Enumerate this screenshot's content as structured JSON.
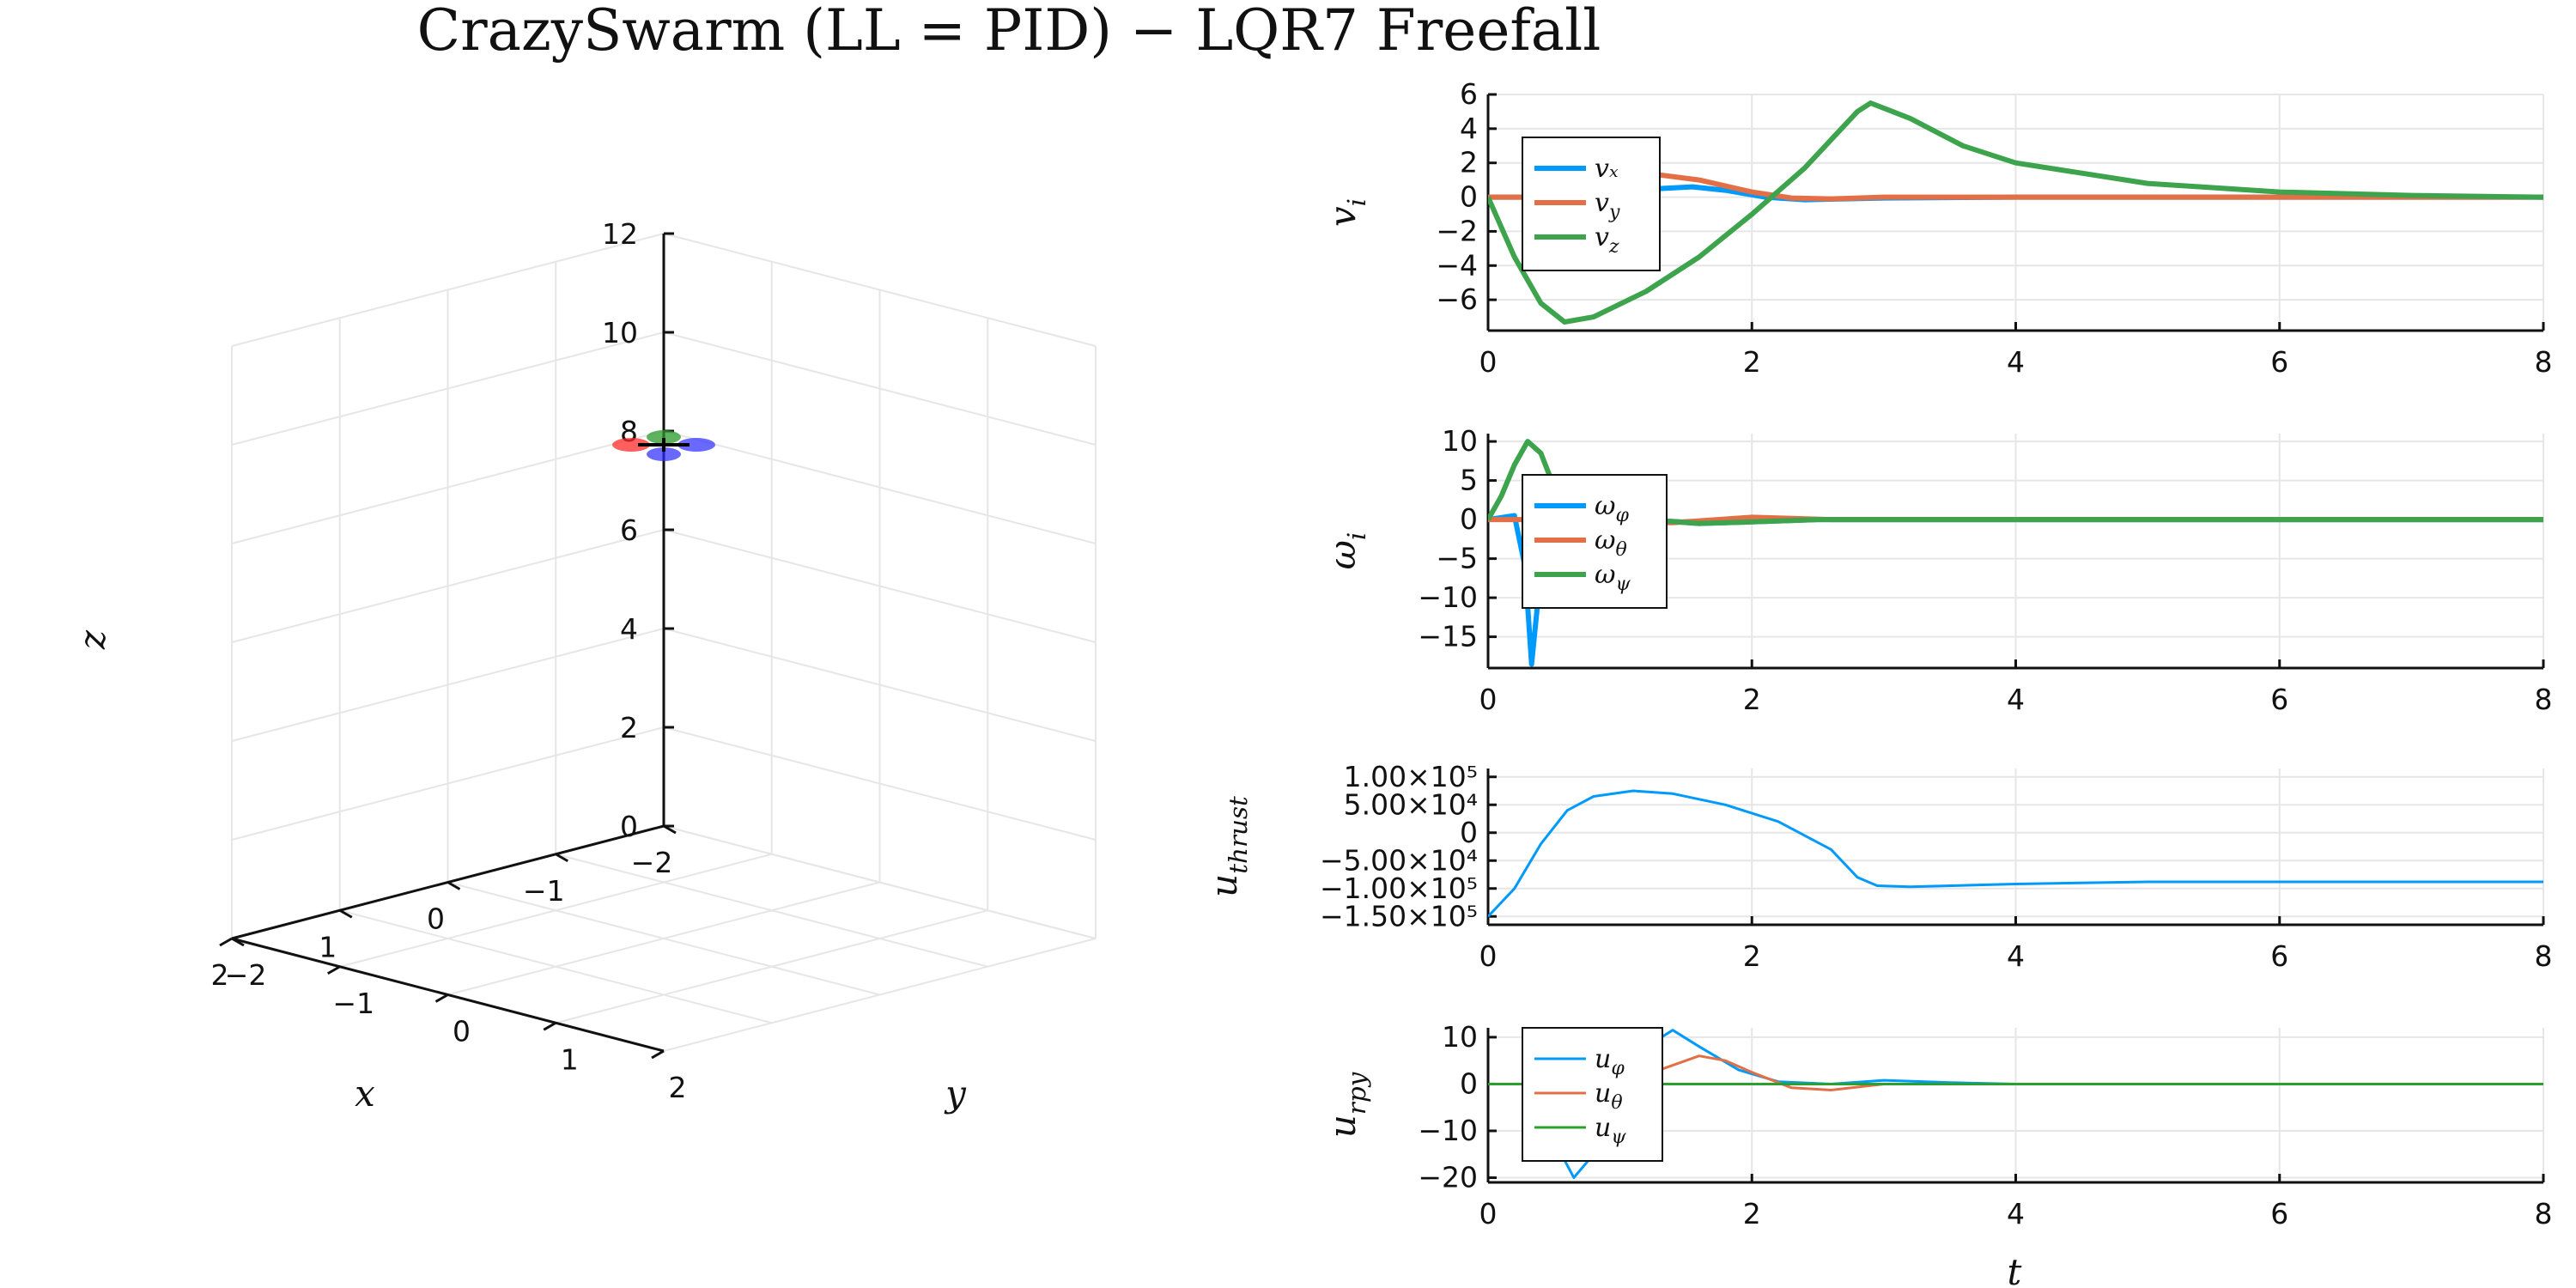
{
  "title": "CrazySwarm (LL = PID) − LQR7 Freefall",
  "colors": {
    "blue": "#009AFA",
    "orange": "#E26F46",
    "green": "#3DA44D",
    "red_prop": "#ff2a2a",
    "blue_prop": "#2a2aff",
    "green_prop": "#2a9a2a"
  },
  "chart_data": [
    {
      "id": "3d",
      "type": "scatter",
      "title": "",
      "xlabel": "x",
      "ylabel": "y",
      "zlabel": "z",
      "x_ticks": [
        "−2",
        "−1",
        "0",
        "1",
        "2"
      ],
      "y_ticks": [
        "−2",
        "−1",
        "0",
        "1",
        "2"
      ],
      "z_ticks": [
        "0",
        "2",
        "4",
        "6",
        "8",
        "10",
        "12"
      ],
      "xlim": [
        -2,
        2
      ],
      "ylim": [
        -2,
        2
      ],
      "zlim": [
        0,
        12
      ],
      "grid": true,
      "points": [
        {
          "label": "quadrotor",
          "x": 0,
          "y": 0,
          "z": 10
        }
      ]
    },
    {
      "id": "v",
      "type": "line",
      "ylabel": "v_i",
      "xlim": [
        0,
        8
      ],
      "ylim": [
        -7.8,
        6
      ],
      "x_ticks": [
        "0",
        "2",
        "4",
        "6",
        "8"
      ],
      "y_ticks": [
        "6",
        "4",
        "2",
        "0",
        "−2",
        "−4",
        "−6"
      ],
      "grid": true,
      "legend": "top-left",
      "series": [
        {
          "name": "vₓ",
          "color": "#009AFA",
          "points": [
            [
              0,
              0
            ],
            [
              0.5,
              0
            ],
            [
              1.0,
              0.2
            ],
            [
              1.3,
              0.5
            ],
            [
              1.55,
              0.6
            ],
            [
              1.8,
              0.4
            ],
            [
              2.1,
              0
            ],
            [
              2.4,
              -0.15
            ],
            [
              3,
              -0.05
            ],
            [
              4,
              0
            ],
            [
              8,
              0
            ]
          ]
        },
        {
          "name": "v_y",
          "color": "#E26F46",
          "points": [
            [
              0,
              0
            ],
            [
              0.6,
              0
            ],
            [
              1.0,
              0.7
            ],
            [
              1.3,
              1.3
            ],
            [
              1.6,
              1.0
            ],
            [
              2.0,
              0.3
            ],
            [
              2.3,
              -0.05
            ],
            [
              2.6,
              -0.1
            ],
            [
              3,
              0
            ],
            [
              8,
              0
            ]
          ]
        },
        {
          "name": "v_z",
          "color": "#3DA44D",
          "points": [
            [
              0,
              0
            ],
            [
              0.2,
              -3.5
            ],
            [
              0.4,
              -6.2
            ],
            [
              0.58,
              -7.3
            ],
            [
              0.8,
              -7.0
            ],
            [
              1.2,
              -5.5
            ],
            [
              1.6,
              -3.5
            ],
            [
              2.0,
              -1.0
            ],
            [
              2.4,
              1.7
            ],
            [
              2.8,
              5.0
            ],
            [
              2.9,
              5.5
            ],
            [
              3.2,
              4.6
            ],
            [
              3.6,
              3.0
            ],
            [
              4.0,
              2.0
            ],
            [
              5.0,
              0.8
            ],
            [
              6.0,
              0.3
            ],
            [
              7.0,
              0.1
            ],
            [
              8.0,
              0
            ]
          ]
        }
      ]
    },
    {
      "id": "w",
      "type": "line",
      "ylabel": "ω_i",
      "xlim": [
        0,
        8
      ],
      "ylim": [
        -19,
        11
      ],
      "x_ticks": [
        "0",
        "2",
        "4",
        "6",
        "8"
      ],
      "y_ticks": [
        "10",
        "5",
        "0",
        "−5",
        "−10",
        "−15"
      ],
      "grid": true,
      "legend": "top-left",
      "series": [
        {
          "name": "ω_φ",
          "color": "#009AFA",
          "points": [
            [
              0,
              0
            ],
            [
              0.2,
              0.5
            ],
            [
              0.28,
              -6
            ],
            [
              0.33,
              -18.5
            ],
            [
              0.38,
              -10
            ],
            [
              0.42,
              -1
            ],
            [
              0.5,
              2
            ],
            [
              0.8,
              1.5
            ],
            [
              1.2,
              0
            ],
            [
              1.6,
              -0.5
            ],
            [
              2.0,
              -0.3
            ],
            [
              2.5,
              0
            ],
            [
              8,
              0
            ]
          ]
        },
        {
          "name": "ω_θ",
          "color": "#E26F46",
          "points": [
            [
              0,
              0
            ],
            [
              0.3,
              0
            ],
            [
              0.6,
              -0.2
            ],
            [
              1.0,
              -0.3
            ],
            [
              1.4,
              -0.4
            ],
            [
              2.0,
              0.3
            ],
            [
              2.2,
              0.2
            ],
            [
              2.6,
              0
            ],
            [
              8,
              0
            ]
          ]
        },
        {
          "name": "ω_ψ",
          "color": "#3DA44D",
          "points": [
            [
              0,
              0
            ],
            [
              0.1,
              3
            ],
            [
              0.2,
              7
            ],
            [
              0.3,
              10
            ],
            [
              0.4,
              8.5
            ],
            [
              0.55,
              2
            ],
            [
              0.8,
              0.5
            ],
            [
              1.2,
              0
            ],
            [
              1.6,
              -0.5
            ],
            [
              2.0,
              -0.3
            ],
            [
              2.5,
              0
            ],
            [
              8,
              0
            ]
          ]
        }
      ]
    },
    {
      "id": "uthrust",
      "type": "line",
      "ylabel": "u_thrust",
      "xlim": [
        0,
        8
      ],
      "ylim": [
        -165000,
        115000
      ],
      "x_ticks": [
        "0",
        "2",
        "4",
        "6",
        "8"
      ],
      "y_ticks": [
        "1.00×10⁵",
        "5.00×10⁴",
        "0",
        "−5.00×10⁴",
        "−1.00×10⁵",
        "−1.50×10⁵"
      ],
      "grid": true,
      "legend": "none",
      "series": [
        {
          "name": "",
          "color": "#009AFA",
          "points": [
            [
              0,
              -150000
            ],
            [
              0.2,
              -100000
            ],
            [
              0.4,
              -20000
            ],
            [
              0.6,
              40000
            ],
            [
              0.8,
              65000
            ],
            [
              1.1,
              75000
            ],
            [
              1.4,
              70000
            ],
            [
              1.8,
              50000
            ],
            [
              2.2,
              20000
            ],
            [
              2.6,
              -30000
            ],
            [
              2.8,
              -80000
            ],
            [
              2.95,
              -95000
            ],
            [
              3.2,
              -97000
            ],
            [
              4,
              -92000
            ],
            [
              5,
              -88000
            ],
            [
              8,
              -88000
            ]
          ]
        }
      ]
    },
    {
      "id": "urpy",
      "type": "line",
      "ylabel": "u_rpy",
      "xlim": [
        0,
        8
      ],
      "ylim": [
        -21,
        12
      ],
      "x_ticks": [
        "0",
        "2",
        "4",
        "6",
        "8"
      ],
      "y_ticks": [
        "10",
        "0",
        "−10",
        "−20"
      ],
      "grid": true,
      "legend": "top-left",
      "series": [
        {
          "name": "u_φ",
          "color": "#009AFA",
          "points": [
            [
              0,
              0
            ],
            [
              0.3,
              0
            ],
            [
              0.5,
              -12
            ],
            [
              0.65,
              -20
            ],
            [
              0.8,
              -15
            ],
            [
              1.0,
              -2
            ],
            [
              1.2,
              8
            ],
            [
              1.4,
              11.5
            ],
            [
              1.6,
              8
            ],
            [
              1.9,
              3
            ],
            [
              2.2,
              0.5
            ],
            [
              2.6,
              0
            ],
            [
              3.0,
              0.8
            ],
            [
              3.5,
              0.3
            ],
            [
              4,
              0
            ],
            [
              8,
              0
            ]
          ]
        },
        {
          "name": "u_θ",
          "color": "#E26F46",
          "points": [
            [
              0,
              0
            ],
            [
              1.0,
              0
            ],
            [
              1.3,
              3
            ],
            [
              1.6,
              6
            ],
            [
              1.8,
              5
            ],
            [
              2.0,
              2.5
            ],
            [
              2.3,
              -0.8
            ],
            [
              2.6,
              -1.3
            ],
            [
              3.0,
              0
            ],
            [
              3.5,
              0
            ],
            [
              8,
              0
            ]
          ]
        },
        {
          "name": "u_ψ",
          "color": "#2CA02C",
          "points": [
            [
              0,
              0
            ],
            [
              8,
              0
            ]
          ]
        }
      ]
    }
  ],
  "xaxis_label": "t"
}
